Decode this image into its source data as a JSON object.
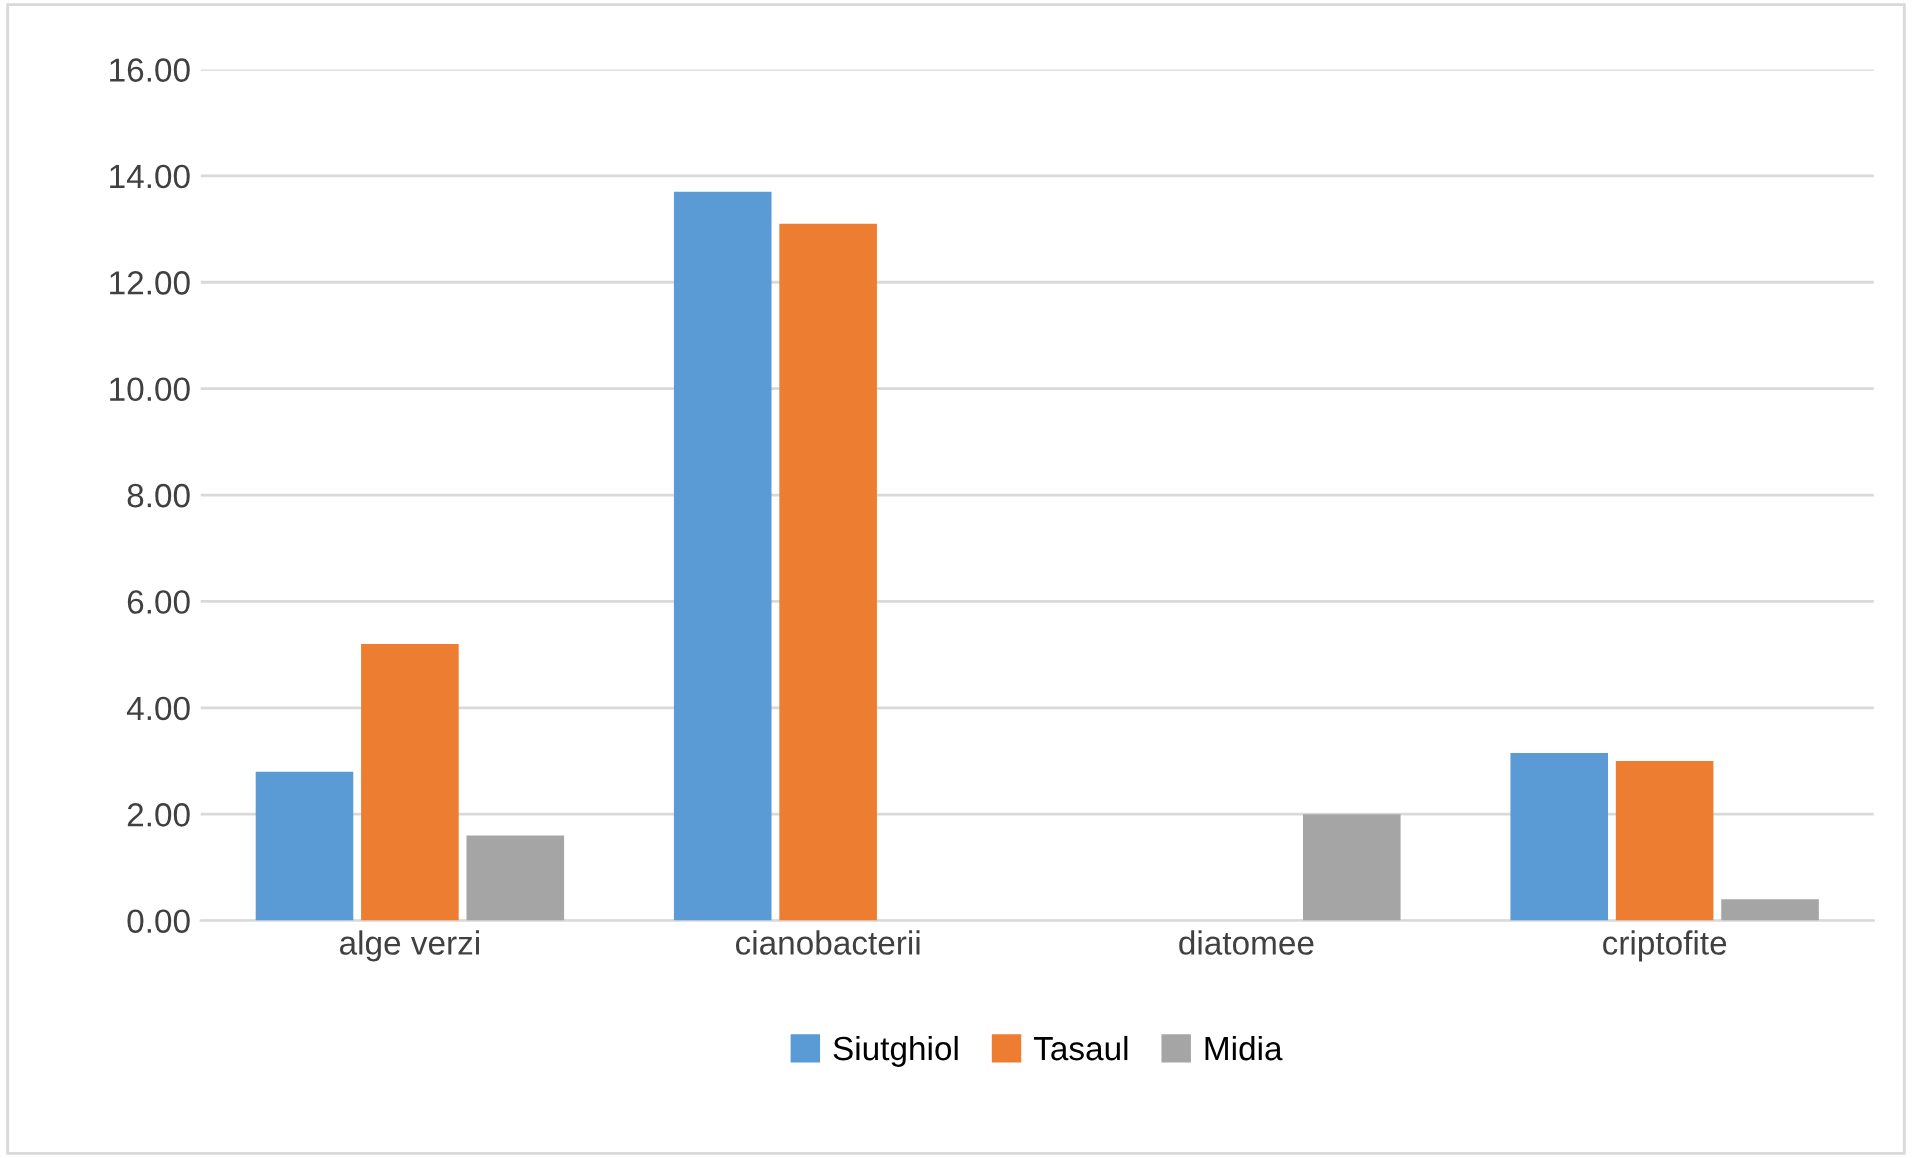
{
  "chart_data": {
    "type": "bar",
    "categories": [
      "alge verzi",
      "cianobacterii",
      "diatomee",
      "criptofite"
    ],
    "series": [
      {
        "name": "Siutghiol",
        "color": "#5b9bd5",
        "values": [
          2.8,
          13.7,
          0,
          3.15
        ]
      },
      {
        "name": "Tasaul",
        "color": "#ed7d31",
        "values": [
          5.2,
          13.1,
          0,
          3.0
        ]
      },
      {
        "name": "Midia",
        "color": "#a5a5a5",
        "values": [
          1.6,
          0,
          2.0,
          0.4
        ]
      }
    ],
    "ylim": [
      0,
      16
    ],
    "yticks": [
      {
        "value": 0,
        "label": "0.00"
      },
      {
        "value": 2,
        "label": "2.00"
      },
      {
        "value": 4,
        "label": "4.00"
      },
      {
        "value": 6,
        "label": "6.00"
      },
      {
        "value": 8,
        "label": "8.00"
      },
      {
        "value": 10,
        "label": "10.00"
      },
      {
        "value": 12,
        "label": "12.00"
      },
      {
        "value": 14,
        "label": "14.00"
      },
      {
        "value": 16,
        "label": "16.00"
      }
    ],
    "grid": "y",
    "legend": "bottom"
  }
}
